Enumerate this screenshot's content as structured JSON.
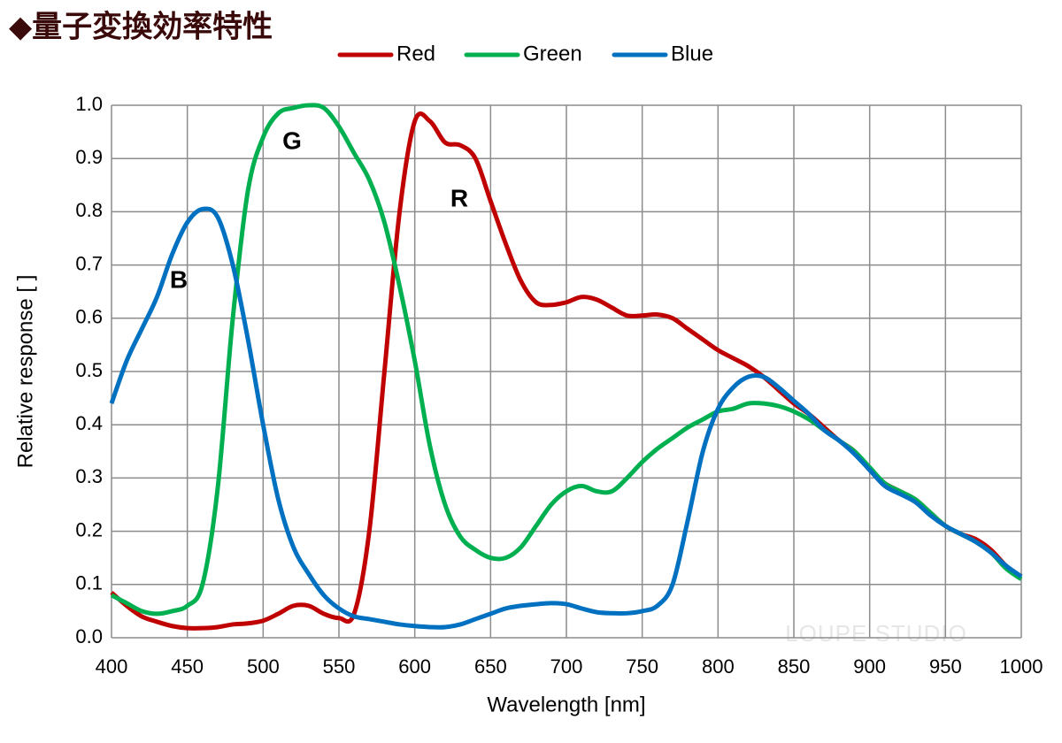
{
  "chart_data": {
    "type": "line",
    "title": "◆量子変換効率特性",
    "x_label": "Wavelength [nm]",
    "y_label": "Relative response [ ]",
    "watermark": "LOUPE STUDIO",
    "annotations": [
      "B",
      "G",
      "R"
    ],
    "x": [
      400,
      410,
      420,
      430,
      440,
      450,
      460,
      470,
      480,
      490,
      500,
      510,
      520,
      530,
      540,
      550,
      560,
      570,
      580,
      590,
      600,
      610,
      620,
      630,
      640,
      650,
      660,
      670,
      680,
      690,
      700,
      710,
      720,
      730,
      740,
      750,
      760,
      770,
      780,
      790,
      800,
      810,
      820,
      830,
      840,
      850,
      860,
      870,
      880,
      890,
      900,
      910,
      920,
      930,
      940,
      950,
      960,
      970,
      980,
      990,
      1000
    ],
    "series": [
      {
        "name": "Red",
        "color": "#c00000",
        "values": [
          0.085,
          0.06,
          0.04,
          0.03,
          0.022,
          0.018,
          0.018,
          0.02,
          0.025,
          0.027,
          0.032,
          0.045,
          0.06,
          0.06,
          0.045,
          0.037,
          0.045,
          0.2,
          0.5,
          0.8,
          0.97,
          0.97,
          0.93,
          0.925,
          0.9,
          0.82,
          0.74,
          0.67,
          0.63,
          0.625,
          0.63,
          0.64,
          0.635,
          0.62,
          0.605,
          0.605,
          0.607,
          0.6,
          0.58,
          0.56,
          0.54,
          0.525,
          0.51,
          0.49,
          0.465,
          0.44,
          0.42,
          0.395,
          0.37,
          0.35,
          0.315,
          0.29,
          0.275,
          0.26,
          0.235,
          0.21,
          0.195,
          0.185,
          0.165,
          0.135,
          0.115
        ]
      },
      {
        "name": "Green",
        "color": "#00b050",
        "values": [
          0.08,
          0.065,
          0.05,
          0.045,
          0.05,
          0.06,
          0.1,
          0.28,
          0.6,
          0.84,
          0.94,
          0.985,
          0.995,
          1.0,
          0.995,
          0.96,
          0.91,
          0.86,
          0.78,
          0.66,
          0.52,
          0.36,
          0.25,
          0.19,
          0.165,
          0.15,
          0.15,
          0.17,
          0.21,
          0.25,
          0.275,
          0.285,
          0.275,
          0.275,
          0.3,
          0.33,
          0.355,
          0.375,
          0.395,
          0.41,
          0.425,
          0.43,
          0.44,
          0.44,
          0.435,
          0.425,
          0.41,
          0.39,
          0.37,
          0.35,
          0.32,
          0.29,
          0.275,
          0.26,
          0.235,
          0.21,
          0.195,
          0.18,
          0.16,
          0.13,
          0.11
        ]
      },
      {
        "name": "Blue",
        "color": "#0070c0",
        "values": [
          0.44,
          0.52,
          0.58,
          0.64,
          0.72,
          0.78,
          0.805,
          0.79,
          0.7,
          0.56,
          0.4,
          0.26,
          0.17,
          0.12,
          0.08,
          0.055,
          0.04,
          0.035,
          0.03,
          0.025,
          0.022,
          0.02,
          0.02,
          0.025,
          0.035,
          0.045,
          0.055,
          0.06,
          0.063,
          0.065,
          0.063,
          0.055,
          0.048,
          0.046,
          0.046,
          0.05,
          0.06,
          0.1,
          0.22,
          0.35,
          0.43,
          0.47,
          0.49,
          0.49,
          0.47,
          0.445,
          0.42,
          0.39,
          0.37,
          0.345,
          0.315,
          0.285,
          0.27,
          0.255,
          0.23,
          0.21,
          0.195,
          0.18,
          0.16,
          0.135,
          0.115
        ]
      }
    ],
    "xlim": [
      400,
      1000
    ],
    "xticks": [
      400,
      450,
      500,
      550,
      600,
      650,
      700,
      750,
      800,
      850,
      900,
      950,
      1000
    ],
    "ylim": [
      0,
      1
    ],
    "yticks": [
      {
        "value": 0,
        "label": "0.0"
      },
      0.1,
      0.2,
      0.3,
      0.4,
      0.5,
      0.6,
      0.7,
      0.8,
      0.9,
      {
        "value": 1,
        "label": "1.0"
      }
    ],
    "grid": true,
    "legend": "top"
  }
}
